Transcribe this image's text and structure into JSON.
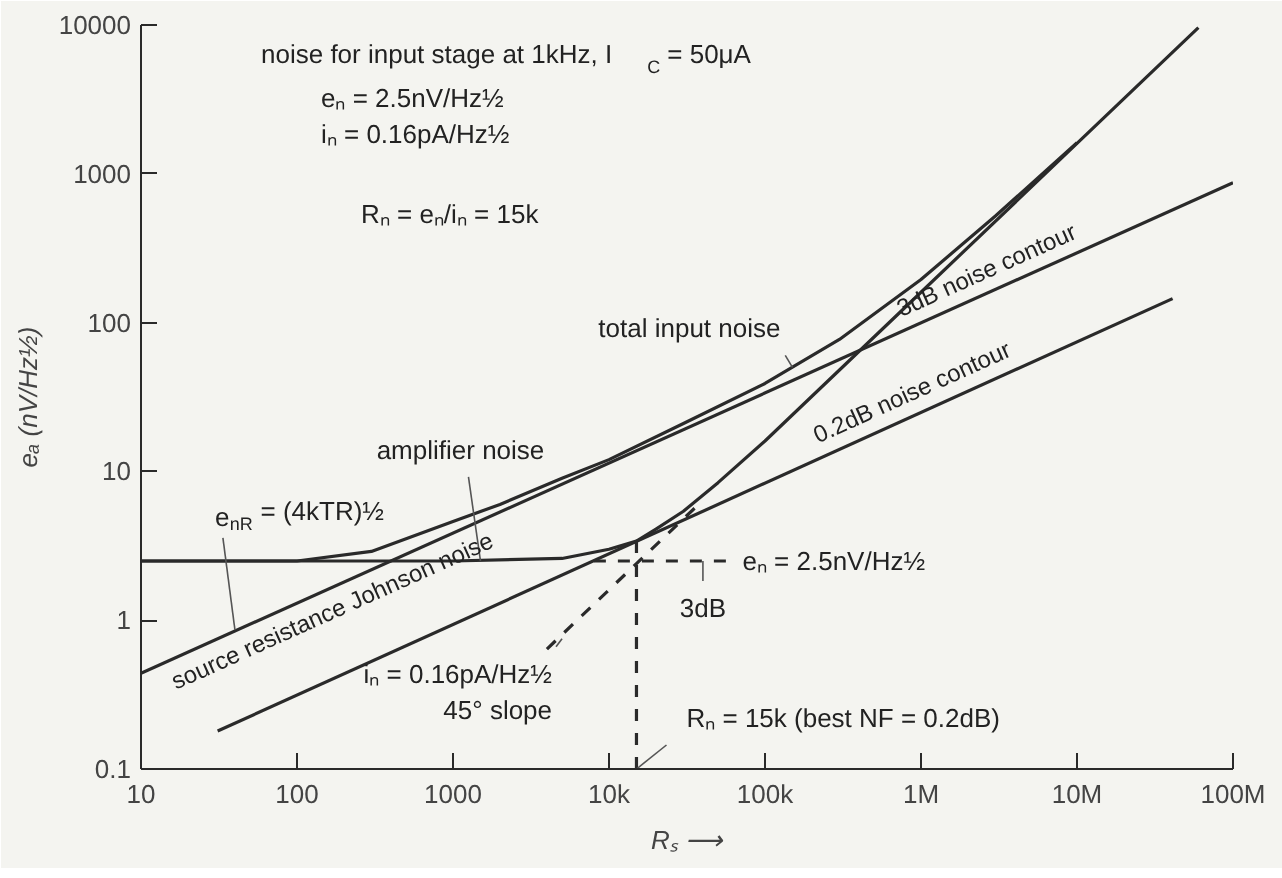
{
  "chart_data": {
    "type": "line",
    "xlabel": "Rₛ ⟶",
    "ylabel": "eₐ (nV/Hz½)",
    "log": "xy",
    "grid": false,
    "xlim": [
      10,
      100000000
    ],
    "ylim": [
      0.1,
      10000
    ],
    "xticks": [
      10,
      100,
      1000,
      {
        "value": 10000,
        "label": "10k"
      },
      {
        "value": 100000,
        "label": "100k"
      },
      {
        "value": 1000000,
        "label": "1M"
      },
      {
        "value": 10000000,
        "label": "10M"
      },
      {
        "value": 100000000,
        "label": "100M"
      }
    ],
    "yticks": [
      0.1,
      1,
      10,
      100,
      1000,
      10000
    ],
    "series": [
      {
        "color": "#2a2a2a",
        "x": [
          10,
          100000000
        ],
        "values": [
          0.44,
          870
        ]
      },
      {
        "color": "#2a2a2a",
        "x": [
          31,
          41000000
        ],
        "values": [
          0.18,
          145
        ]
      },
      {
        "color": "#2a2a2a",
        "x": [
          10,
          1000,
          5000,
          10000,
          15000,
          20000,
          30000,
          50000,
          100000,
          1000000,
          10000000,
          60000000
        ],
        "values": [
          2.5,
          2.5,
          2.6,
          3.0,
          3.4,
          4.1,
          5.4,
          8.4,
          16,
          160,
          1600,
          9600
        ]
      },
      {
        "color": "#2a2a2a",
        "x": [
          10,
          100,
          300,
          1000,
          2000,
          5000,
          10000,
          30000,
          100000,
          300000,
          1000000,
          3000000,
          10000000
        ],
        "values": [
          2.5,
          2.5,
          2.9,
          4.6,
          6,
          9,
          12,
          21,
          39,
          77,
          195,
          520,
          1620
        ]
      },
      {
        "color": "#2a2a2a",
        "line_style": "dashed",
        "x": [
          4000,
          15000,
          40000
        ],
        "values": [
          0.64,
          2.4,
          6.4
        ]
      },
      {
        "color": "#2a2a2a",
        "line_style": "dashed",
        "x": [
          15000,
          15000
        ],
        "values": [
          0.1,
          3.4
        ]
      },
      {
        "color": "#2a2a2a",
        "line_style": "dashed",
        "x": [
          8000,
          60000
        ],
        "values": [
          2.5,
          2.5
        ]
      }
    ],
    "annotations": [
      "noise for input stage at 1kHz, I$_{C}$ = 50μA",
      "eₙ = 2.5nV/Hz½",
      "iₙ = 0.16pA/Hz½",
      "Rₙ = eₙ/iₙ = 15k",
      {
        "text": "total input noise",
        "x": 150000,
        "y": 50
      },
      {
        "text": "amplifier noise",
        "x": 1500,
        "y": 2.5
      },
      {
        "text": "e$_{nR}$ = (4kTR)½",
        "x": 40,
        "y": 0.86
      },
      {
        "text": "iₙ = 0.16pA/Hz½",
        "x": 5000,
        "y": 0.75
      },
      {
        "text": "45° slope",
        "x": 5000,
        "y": 0.75
      },
      {
        "text": "eₙ = 2.5nV/Hz½",
        "x": 60000,
        "y": 2.5
      },
      {
        "text": "3dB",
        "x": 40000,
        "y": 2.5
      },
      {
        "text": "Rₙ = 15k (best NF = 0.2dB)",
        "x": 15000,
        "y": 0.1
      },
      {
        "text": "source resistance Johnson noise",
        "x": 14,
        "y": 0.52
      },
      {
        "text": "3dB noise contour",
        "x": 3000000,
        "y": 165
      },
      {
        "text": "0.2dB noise contour",
        "x": 1000000,
        "y": 25
      }
    ]
  }
}
